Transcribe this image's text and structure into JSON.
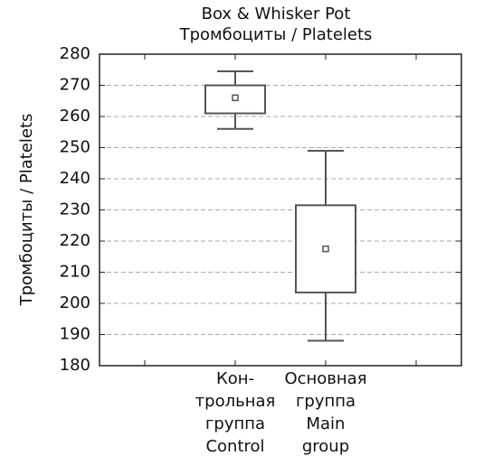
{
  "chart_data": {
    "type": "box",
    "title": [
      "Box & Whisker Pot",
      "Тромбоциты / Platelets"
    ],
    "y_label": "Тромбоциты / Platelets",
    "categories": [
      null,
      [
        "Кон-",
        "трольная",
        "группа",
        "Control"
      ],
      [
        "Основная",
        "группа",
        "Main",
        "group"
      ],
      null
    ],
    "whisker_low": [
      null,
      256,
      188,
      null
    ],
    "box_low": [
      null,
      261,
      203.5,
      null
    ],
    "center": [
      null,
      266,
      217.5,
      null
    ],
    "box_high": [
      null,
      270,
      231.5,
      null
    ],
    "whisker_high": [
      null,
      274.5,
      249,
      null
    ],
    "color": "#555555",
    "ylim": [
      180,
      280
    ],
    "yticks": [
      180,
      190,
      200,
      210,
      220,
      230,
      240,
      250,
      260,
      270,
      280
    ],
    "grid": true
  }
}
